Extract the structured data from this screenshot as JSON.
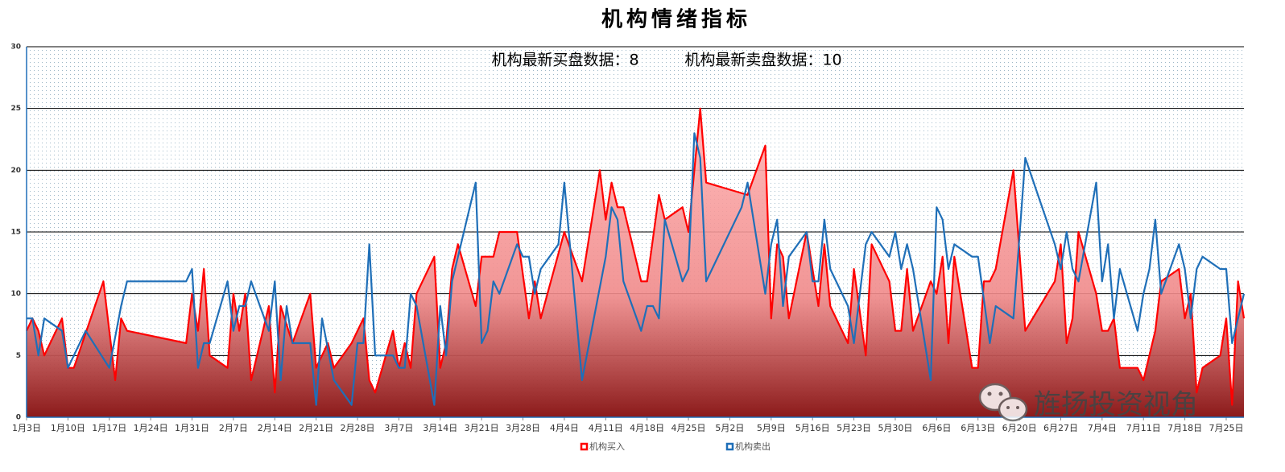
{
  "chart_data": {
    "type": "line",
    "title": "机构情绪指标",
    "annotations": [
      "机构最新买盘数据：8",
      "机构最新卖盘数据：10"
    ],
    "watermark": "旌扬投资视角",
    "xlim": [
      "1月3日",
      "7月28日"
    ],
    "xticks": [
      "1月3日",
      "1月10日",
      "1月17日",
      "1月24日",
      "1月31日",
      "2月7日",
      "2月14日",
      "2月21日",
      "2月28日",
      "3月7日",
      "3月14日",
      "3月21日",
      "3月28日",
      "4月4日",
      "4月11日",
      "4月18日",
      "4月25日",
      "5月2日",
      "5月9日",
      "5月16日",
      "5月23日",
      "5月30日",
      "6月6日",
      "6月13日",
      "6月20日",
      "6月27日",
      "7月4日",
      "7月11日",
      "7月18日",
      "7月25日"
    ],
    "ylim": [
      0,
      30
    ],
    "yticks": [
      0,
      5,
      10,
      15,
      20,
      25,
      30
    ],
    "grid": true,
    "series": [
      {
        "name": "机构买入",
        "color": "#ff0000",
        "area": true,
        "x": [
          "1月3日",
          "1月4日",
          "1月5日",
          "1月6日",
          "1月9日",
          "1月10日",
          "1月11日",
          "1月16日",
          "1月18日",
          "1月19日",
          "1月20日",
          "1月30日",
          "1月31日",
          "2月1日",
          "2月2日",
          "2月3日",
          "2月6日",
          "2月7日",
          "2月8日",
          "2月9日",
          "2月10日",
          "2月13日",
          "2月14日",
          "2月15日",
          "2月17日",
          "2月20日",
          "2月21日",
          "2月23日",
          "2月24日",
          "2月27日",
          "3月1日",
          "3月2日",
          "3月3日",
          "3月6日",
          "3月7日",
          "3月8日",
          "3月9日",
          "3月10日",
          "3月13日",
          "3月14日",
          "3月15日",
          "3月16日",
          "3月17日",
          "3月20日",
          "3月21日",
          "3月23日",
          "3月24日",
          "3月27日",
          "3月29日",
          "3月30日",
          "3月31日",
          "4月4日",
          "4月7日",
          "4月10日",
          "4月11日",
          "4月12日",
          "4月13日",
          "4月14日",
          "4月17日",
          "4月18日",
          "4月20日",
          "4月21日",
          "4月24日",
          "4月25日",
          "4月27日",
          "4月28日",
          "5月5日",
          "5月8日",
          "5月9日",
          "5月10日",
          "5月11日",
          "5月12日",
          "5月15日",
          "5月17日",
          "5月18日",
          "5月19日",
          "5月22日",
          "5月23日",
          "5月25日",
          "5月26日",
          "5月29日",
          "5月30日",
          "5月31日",
          "6月1日",
          "6月2日",
          "6月5日",
          "6月6日",
          "6月7日",
          "6月8日",
          "6月9日",
          "6月12日",
          "6月13日",
          "6月14日",
          "6月15日",
          "6月16日",
          "6月19日",
          "6月21日",
          "6月26日",
          "6月27日",
          "6月28日",
          "6月29日",
          "6月30日",
          "7月3日",
          "7月4日",
          "7月5日",
          "7月6日",
          "7月7日",
          "7月10日",
          "7月11日",
          "7月13日",
          "7月14日",
          "7月17日",
          "7月18日",
          "7月19日",
          "7月20日",
          "7月21日",
          "7月24日",
          "7月25日",
          "7月26日",
          "7月27日",
          "7月28日"
        ],
        "values": [
          7,
          8,
          7,
          5,
          8,
          4,
          4,
          11,
          3,
          8,
          7,
          6,
          10,
          7,
          12,
          5,
          4,
          10,
          7,
          10,
          3,
          9,
          2,
          9,
          6,
          10,
          4,
          6,
          4,
          6,
          8,
          3,
          2,
          7,
          4,
          6,
          4,
          10,
          13,
          4,
          6,
          12,
          14,
          9,
          13,
          13,
          15,
          15,
          8,
          11,
          8,
          15,
          11,
          20,
          16,
          19,
          17,
          17,
          11,
          11,
          18,
          16,
          17,
          15,
          25,
          19,
          18,
          22,
          8,
          14,
          13,
          8,
          15,
          9,
          14,
          9,
          6,
          12,
          5,
          14,
          11,
          7,
          7,
          12,
          7,
          11,
          10,
          13,
          6,
          13,
          4,
          4,
          11,
          11,
          12,
          20,
          7,
          11,
          14,
          6,
          8,
          15,
          10,
          7,
          7,
          8,
          4,
          4,
          3,
          7,
          11,
          12,
          8,
          10,
          2,
          4,
          5,
          8,
          1,
          11,
          8
        ]
      },
      {
        "name": "机构卖出",
        "color": "#1f6fb8",
        "x": [
          "1月3日",
          "1月4日",
          "1月5日",
          "1月6日",
          "1月9日",
          "1月10日",
          "1月13日",
          "1月17日",
          "1月19日",
          "1月20日",
          "1月30日",
          "1月31日",
          "2月1日",
          "2月2日",
          "2月3日",
          "2月6日",
          "2月7日",
          "2月8日",
          "2月9日",
          "2月10日",
          "2月13日",
          "2月14日",
          "2月15日",
          "2月16日",
          "2月17日",
          "2月20日",
          "2月21日",
          "2月22日",
          "2月24日",
          "2月27日",
          "2月28日",
          "3月1日",
          "3月2日",
          "3月3日",
          "3月6日",
          "3月7日",
          "3月8日",
          "3月9日",
          "3月10日",
          "3月13日",
          "3月14日",
          "3月15日",
          "3月16日",
          "3月20日",
          "3月21日",
          "3月22日",
          "3月23日",
          "3月24日",
          "3月27日",
          "3月28日",
          "3月29日",
          "3月30日",
          "3月31日",
          "4月3日",
          "4月4日",
          "4月7日",
          "4月11日",
          "4月12日",
          "4月13日",
          "4月14日",
          "4月17日",
          "4月18日",
          "4月19日",
          "4月20日",
          "4月21日",
          "4月24日",
          "4月25日",
          "4月26日",
          "4月27日",
          "4月28日",
          "5月4日",
          "5月5日",
          "5月8日",
          "5月9日",
          "5月10日",
          "5月11日",
          "5月12日",
          "5月15日",
          "5月16日",
          "5月17日",
          "5月18日",
          "5月19日",
          "5月22日",
          "5月23日",
          "5月25日",
          "5月26日",
          "5月29日",
          "5月30日",
          "5月31日",
          "6月1日",
          "6月2日",
          "6月5日",
          "6月6日",
          "6月7日",
          "6月8日",
          "6月9日",
          "6月12日",
          "6月13日",
          "6月15日",
          "6月16日",
          "6月19日",
          "6月21日",
          "6月26日",
          "6月27日",
          "6月28日",
          "6月29日",
          "6月30日",
          "7月3日",
          "7月4日",
          "7月5日",
          "7月6日",
          "7月7日",
          "7月10日",
          "7月11日",
          "7月12日",
          "7月13日",
          "7月14日",
          "7月17日",
          "7月18日",
          "7月19日",
          "7月20日",
          "7月21日",
          "7月24日",
          "7月25日",
          "7月26日",
          "7月27日",
          "7月28日"
        ],
        "values": [
          8,
          8,
          5,
          8,
          7,
          4,
          7,
          4,
          9,
          11,
          11,
          12,
          4,
          6,
          6,
          11,
          7,
          9,
          9,
          11,
          7,
          11,
          3,
          9,
          6,
          6,
          1,
          8,
          3,
          1,
          6,
          6,
          14,
          5,
          5,
          4,
          4,
          10,
          9,
          1,
          9,
          5,
          11,
          19,
          6,
          7,
          11,
          10,
          14,
          13,
          13,
          10,
          12,
          14,
          19,
          3,
          13,
          17,
          16,
          11,
          7,
          9,
          9,
          8,
          16,
          11,
          12,
          23,
          21,
          11,
          17,
          19,
          10,
          14,
          16,
          9,
          13,
          15,
          11,
          11,
          16,
          12,
          9,
          6,
          14,
          15,
          13,
          15,
          12,
          14,
          12,
          3,
          17,
          16,
          12,
          14,
          13,
          13,
          6,
          9,
          8,
          21,
          14,
          12,
          15,
          12,
          11,
          19,
          11,
          14,
          8,
          12,
          7,
          10,
          12,
          16,
          10,
          14,
          12,
          8,
          12,
          13,
          12,
          12,
          6,
          8,
          10
        ]
      }
    ]
  }
}
